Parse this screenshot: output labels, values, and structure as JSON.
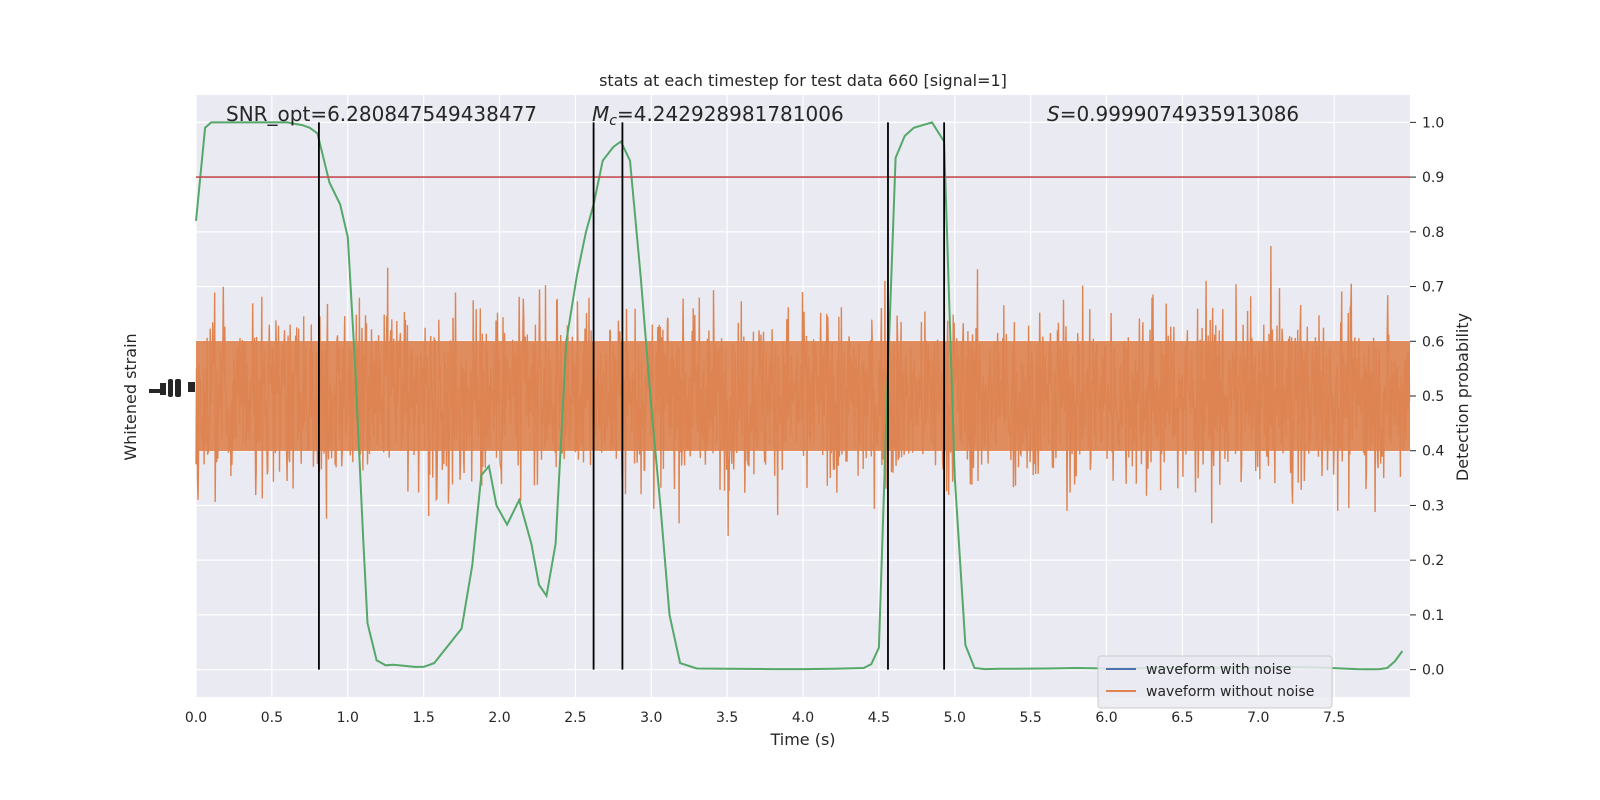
{
  "chart_data": {
    "type": "line",
    "title": "stats at each timestep for test data 660 [signal=1]",
    "xlabel": "Time (s)",
    "ylabel_left": "Whitened strain",
    "ylabel_right": "Detection probability",
    "xlim": [
      0.0,
      8.0
    ],
    "ylim_right": [
      -0.05,
      1.05
    ],
    "x_ticks": [
      "0.0",
      "0.5",
      "1.0",
      "1.5",
      "2.0",
      "2.5",
      "3.0",
      "3.5",
      "4.0",
      "4.5",
      "5.0",
      "5.5",
      "6.0",
      "6.5",
      "7.0",
      "7.5"
    ],
    "x_tick_values": [
      0.0,
      0.5,
      1.0,
      1.5,
      2.0,
      2.5,
      3.0,
      3.5,
      4.0,
      4.5,
      5.0,
      5.5,
      6.0,
      6.5,
      7.0,
      7.5
    ],
    "y_ticks_right": [
      "0.0",
      "0.1",
      "0.2",
      "0.3",
      "0.4",
      "0.5",
      "0.6",
      "0.7",
      "0.8",
      "0.9",
      "1.0"
    ],
    "y_tick_values_right": [
      0.0,
      0.1,
      0.2,
      0.3,
      0.4,
      0.5,
      0.6,
      0.7,
      0.8,
      0.9,
      1.0
    ],
    "grid": true,
    "legend_position": "lower-right",
    "annotations": {
      "snr_label": "SNR_opt=6.280847549438477",
      "mc_symbol": "M",
      "mc_sub": "c",
      "mc_value": "=4.242928981781006",
      "s_symbol": "S",
      "s_value": "=0.9999074935913086"
    },
    "threshold": 0.9,
    "vertical_lines_x": [
      0.81,
      2.62,
      2.81,
      4.56,
      4.93
    ],
    "series": [
      {
        "name": "waveform with noise",
        "color": "#4c72b0"
      },
      {
        "name": "waveform without noise",
        "color": "#dd8452"
      },
      {
        "color": "#55a868",
        "x": [
          0.0,
          0.06,
          0.1,
          0.2,
          0.3,
          0.4,
          0.5,
          0.6,
          0.7,
          0.75,
          0.8,
          0.88,
          0.95,
          1.0,
          1.05,
          1.1,
          1.13,
          1.19,
          1.25,
          1.3,
          1.37,
          1.44,
          1.5,
          1.57,
          1.65,
          1.75,
          1.82,
          1.88,
          1.93,
          1.98,
          2.05,
          2.13,
          2.21,
          2.26,
          2.31,
          2.37,
          2.44,
          2.51,
          2.57,
          2.62,
          2.68,
          2.75,
          2.8,
          2.86,
          2.93,
          3.0,
          3.06,
          3.12,
          3.19,
          3.3,
          3.5,
          3.8,
          4.0,
          4.2,
          4.4,
          4.45,
          4.5,
          4.56,
          4.61,
          4.67,
          4.73,
          4.79,
          4.85,
          4.93,
          5.0,
          5.07,
          5.13,
          5.2,
          5.3,
          5.6,
          5.8,
          6.0,
          6.2,
          6.5,
          7.0,
          7.2,
          7.4,
          7.55,
          7.65,
          7.7,
          7.75,
          7.8,
          7.85,
          7.9,
          7.95
        ],
        "y": [
          0.82,
          0.99,
          1.0,
          1.0,
          1.0,
          1.0,
          1.0,
          1.0,
          0.995,
          0.99,
          0.98,
          0.89,
          0.85,
          0.79,
          0.55,
          0.25,
          0.085,
          0.017,
          0.008,
          0.009,
          0.007,
          0.005,
          0.005,
          0.012,
          0.04,
          0.075,
          0.19,
          0.355,
          0.372,
          0.3,
          0.265,
          0.31,
          0.23,
          0.155,
          0.135,
          0.23,
          0.6,
          0.72,
          0.8,
          0.85,
          0.93,
          0.955,
          0.965,
          0.93,
          0.72,
          0.48,
          0.3,
          0.1,
          0.012,
          0.002,
          0.0015,
          0.001,
          0.001,
          0.0015,
          0.003,
          0.01,
          0.04,
          0.55,
          0.935,
          0.975,
          0.99,
          0.995,
          1.0,
          0.965,
          0.35,
          0.045,
          0.003,
          0.001,
          0.0015,
          0.002,
          0.003,
          0.002,
          0.0025,
          0.003,
          0.004,
          0.005,
          0.004,
          0.002,
          0.001,
          0.0008,
          0.0008,
          0.001,
          0.003,
          0.015,
          0.034
        ]
      }
    ]
  }
}
